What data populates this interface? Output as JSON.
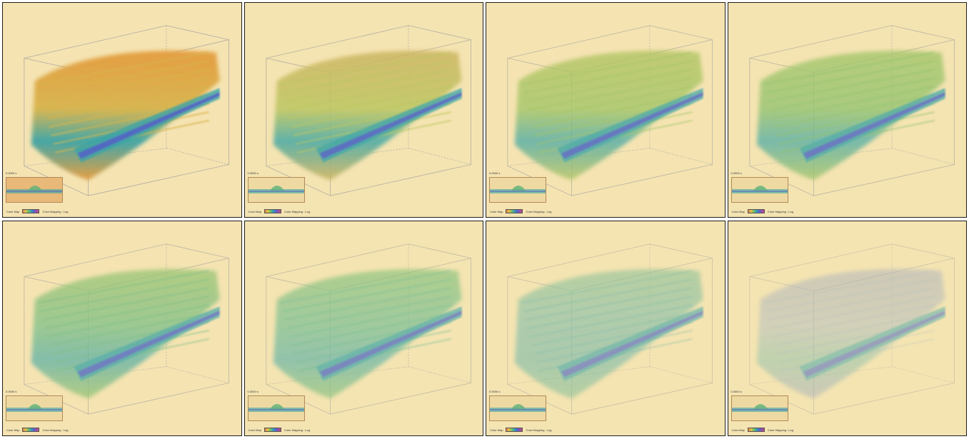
{
  "panels": [
    {
      "id": "p1",
      "time": "0.0000 s",
      "dominant": "#e39a3a",
      "secondary": "#d6b34a",
      "opacity": 0.95,
      "haze": 0.05
    },
    {
      "id": "p2",
      "time": "0.0000 s",
      "dominant": "#c9b05a",
      "secondary": "#b7c35a",
      "opacity": 0.85,
      "haze": 0.15
    },
    {
      "id": "p3",
      "time": "0.0000 s",
      "dominant": "#a8c057",
      "secondary": "#97c15c",
      "opacity": 0.8,
      "haze": 0.25
    },
    {
      "id": "p4",
      "time": "0.0000 s",
      "dominant": "#93c05b",
      "secondary": "#7fbd63",
      "opacity": 0.78,
      "haze": 0.3
    },
    {
      "id": "p5",
      "time": "0.0000 s",
      "dominant": "#83bd62",
      "secondary": "#5fb67d",
      "opacity": 0.75,
      "haze": 0.35
    },
    {
      "id": "p6",
      "time": "0.0000 s",
      "dominant": "#6fba6c",
      "secondary": "#4fb18c",
      "opacity": 0.7,
      "haze": 0.45
    },
    {
      "id": "p7",
      "time": "0.0000 s",
      "dominant": "#58b089",
      "secondary": "#3fa6a5",
      "opacity": 0.6,
      "haze": 0.6
    },
    {
      "id": "p8",
      "time": "0.0000 s",
      "dominant": "#6d82c4",
      "secondary": "#7a9ec9",
      "opacity": 0.5,
      "haze": 0.75
    }
  ],
  "legend": {
    "colormap_label": "Color Map",
    "mapping_label": "Color Mapping : Log"
  },
  "colors": {
    "background": "#f5e4b2",
    "core": "#4f5fc4",
    "mid": "#36a3a6",
    "outer": "#c9c25a"
  }
}
